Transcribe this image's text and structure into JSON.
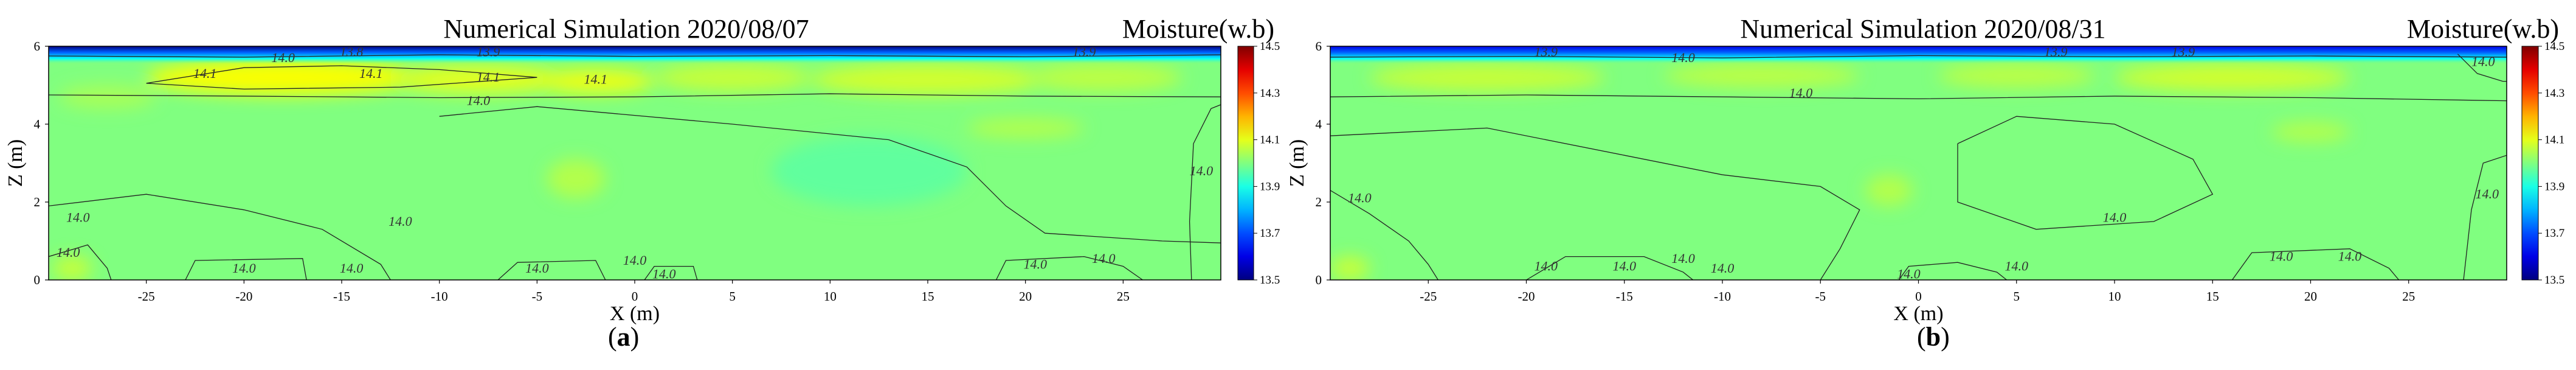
{
  "chart_data": [
    {
      "type": "heatmap",
      "panel_label": "a",
      "title": "Numerical Simulation 2020/08/07",
      "colorbar_title": "Moisture(w.b)",
      "xlabel": "X (m)",
      "ylabel": "Z (m)",
      "xlim": [
        -30,
        30
      ],
      "ylim": [
        0,
        6
      ],
      "x_ticks": [
        -25,
        -20,
        -15,
        -10,
        -5,
        0,
        5,
        10,
        15,
        20,
        25
      ],
      "y_ticks": [
        0,
        2,
        4,
        6
      ],
      "colorbar_ticks": [
        "13.5",
        "13.7",
        "13.9",
        "14.1",
        "14.3",
        "14.5"
      ],
      "colorbar_range": [
        13.5,
        14.5
      ],
      "contour_labels": [
        {
          "text": "14.0",
          "x": -18,
          "y": 5.7
        },
        {
          "text": "13.8",
          "x": -14.5,
          "y": 5.85
        },
        {
          "text": "14.1",
          "x": -22,
          "y": 5.3
        },
        {
          "text": "14.1",
          "x": -13.5,
          "y": 5.3
        },
        {
          "text": "14.1",
          "x": -7.5,
          "y": 5.2
        },
        {
          "text": "14.1",
          "x": -2,
          "y": 5.15
        },
        {
          "text": "13.9",
          "x": -7.5,
          "y": 5.85
        },
        {
          "text": "14.0",
          "x": -8,
          "y": 4.6
        },
        {
          "text": "14.0",
          "x": -12,
          "y": 1.5
        },
        {
          "text": "14.0",
          "x": -28.5,
          "y": 1.6
        },
        {
          "text": "14.0",
          "x": -29,
          "y": 0.7
        },
        {
          "text": "14.0",
          "x": -20,
          "y": 0.3
        },
        {
          "text": "14.0",
          "x": -14.5,
          "y": 0.3
        },
        {
          "text": "14.0",
          "x": -5,
          "y": 0.3
        },
        {
          "text": "14.0",
          "x": 0,
          "y": 0.5
        },
        {
          "text": "14.0",
          "x": 1.5,
          "y": 0.15
        },
        {
          "text": "14.0",
          "x": 20.5,
          "y": 0.4
        },
        {
          "text": "14.0",
          "x": 24,
          "y": 0.55
        },
        {
          "text": "14.0",
          "x": 29,
          "y": 2.8
        },
        {
          "text": "13.9",
          "x": 23,
          "y": 5.85
        }
      ],
      "moist_blobs": [
        {
          "x": -18,
          "y": 5.2,
          "rx": 7,
          "ry": 0.45,
          "v": 14.12
        },
        {
          "x": -8,
          "y": 5.15,
          "rx": 4.5,
          "ry": 0.35,
          "v": 14.1
        },
        {
          "x": -2,
          "y": 5.1,
          "rx": 3,
          "ry": 0.3,
          "v": 14.11
        },
        {
          "x": 5,
          "y": 5.2,
          "rx": 4,
          "ry": 0.35,
          "v": 14.07
        },
        {
          "x": 15,
          "y": 5.15,
          "rx": 6,
          "ry": 0.4,
          "v": 14.08
        },
        {
          "x": 24,
          "y": 5.2,
          "rx": 4,
          "ry": 0.35,
          "v": 14.06
        },
        {
          "x": 20,
          "y": 3.9,
          "rx": 3,
          "ry": 0.25,
          "v": 14.05
        },
        {
          "x": -3,
          "y": 2.6,
          "rx": 1.5,
          "ry": 0.5,
          "v": 14.05
        },
        {
          "x": -27,
          "y": 4.7,
          "rx": 2.5,
          "ry": 0.3,
          "v": 14.04
        },
        {
          "x": -28.8,
          "y": 0.3,
          "rx": 1,
          "ry": 0.3,
          "v": 14.07
        },
        {
          "x": 12,
          "y": 2.8,
          "rx": 5,
          "ry": 0.9,
          "v": 13.97
        }
      ],
      "surface_min": 13.5
    },
    {
      "type": "heatmap",
      "panel_label": "b",
      "title": "Numerical Simulation 2020/08/31",
      "colorbar_title": "Moisture(w.b)",
      "xlabel": "X (m)",
      "ylabel": "Z (m)",
      "xlim": [
        -30,
        30
      ],
      "ylim": [
        0,
        6
      ],
      "x_ticks": [
        -25,
        -20,
        -15,
        -10,
        -5,
        0,
        5,
        10,
        15,
        20,
        25
      ],
      "y_ticks": [
        0,
        2,
        4,
        6
      ],
      "colorbar_ticks": [
        "13.5",
        "13.7",
        "13.9",
        "14.1",
        "14.3",
        "14.5"
      ],
      "colorbar_range": [
        13.5,
        14.5
      ],
      "contour_labels": [
        {
          "text": "13.9",
          "x": -19,
          "y": 5.85
        },
        {
          "text": "14.0",
          "x": -12,
          "y": 5.7
        },
        {
          "text": "13.9",
          "x": 7,
          "y": 5.85
        },
        {
          "text": "13.9",
          "x": 13.5,
          "y": 5.85
        },
        {
          "text": "14.0",
          "x": -6,
          "y": 4.8
        },
        {
          "text": "14.0",
          "x": -28.5,
          "y": 2.1
        },
        {
          "text": "14.0",
          "x": 10,
          "y": 1.6
        },
        {
          "text": "14.0",
          "x": 29,
          "y": 2.2
        },
        {
          "text": "14.0",
          "x": 28.8,
          "y": 5.6
        },
        {
          "text": "14.0",
          "x": -19,
          "y": 0.35
        },
        {
          "text": "14.0",
          "x": -15,
          "y": 0.35
        },
        {
          "text": "14.0",
          "x": -12,
          "y": 0.55
        },
        {
          "text": "14.0",
          "x": -10,
          "y": 0.3
        },
        {
          "text": "14.0",
          "x": -0.5,
          "y": 0.15
        },
        {
          "text": "14.0",
          "x": 5,
          "y": 0.35
        },
        {
          "text": "14.0",
          "x": 18.5,
          "y": 0.6
        },
        {
          "text": "14.0",
          "x": 22,
          "y": 0.6
        }
      ],
      "moist_blobs": [
        {
          "x": -22,
          "y": 5.2,
          "rx": 6,
          "ry": 0.35,
          "v": 14.07
        },
        {
          "x": -8,
          "y": 5.25,
          "rx": 5,
          "ry": 0.3,
          "v": 14.06
        },
        {
          "x": 5,
          "y": 5.25,
          "rx": 4,
          "ry": 0.3,
          "v": 14.06
        },
        {
          "x": 16,
          "y": 5.2,
          "rx": 6,
          "ry": 0.35,
          "v": 14.08
        },
        {
          "x": 20,
          "y": 3.8,
          "rx": 2,
          "ry": 0.25,
          "v": 14.05
        },
        {
          "x": -1.5,
          "y": 2.3,
          "rx": 1.2,
          "ry": 0.4,
          "v": 14.05
        },
        {
          "x": -29,
          "y": 0.3,
          "rx": 1,
          "ry": 0.3,
          "v": 14.07
        }
      ],
      "surface_min": 13.6
    }
  ]
}
